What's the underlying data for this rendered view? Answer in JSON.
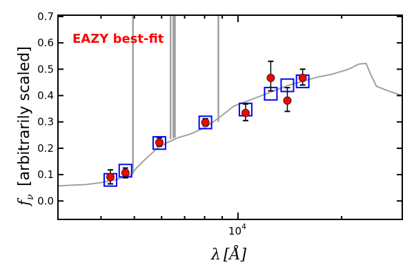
{
  "chart_data": {
    "type": "scatter",
    "annotation": "EAZY best-fit",
    "xlabel_symbol": "λ",
    "xlabel_unit": "[Å]",
    "ylabel_symbol": "f",
    "ylabel_subscript": "ν",
    "ylabel_text": "[arbitrarily scaled]",
    "xscale": "log",
    "xlim": [
      3000,
      30000
    ],
    "ylim": [
      -0.07,
      0.705
    ],
    "yticks": [
      0.0,
      0.1,
      0.2,
      0.3,
      0.4,
      0.5,
      0.6,
      0.7
    ],
    "ytick_labels": [
      "0.0",
      "0.1",
      "0.2",
      "0.3",
      "0.4",
      "0.5",
      "0.6",
      "0.7"
    ],
    "xtick_major": [
      10000
    ],
    "xtick_major_base": "10",
    "xtick_major_exp": "4",
    "xtick_minor": [
      4000,
      5000,
      6000,
      7000,
      8000,
      9000,
      20000
    ],
    "colors": {
      "sed": "#a0a0a0",
      "obs": "#ff0000",
      "model": "#0000ff",
      "annotation": "#ff0000"
    },
    "observed": [
      {
        "x": 4260,
        "y": 0.091,
        "lo": 0.065,
        "hi": 0.118
      },
      {
        "x": 4710,
        "y": 0.107,
        "lo": 0.088,
        "hi": 0.125
      },
      {
        "x": 5910,
        "y": 0.222,
        "lo": 0.208,
        "hi": 0.24
      },
      {
        "x": 8040,
        "y": 0.298,
        "lo": 0.285,
        "hi": 0.312
      },
      {
        "x": 10520,
        "y": 0.334,
        "lo": 0.305,
        "hi": 0.368
      },
      {
        "x": 12450,
        "y": 0.467,
        "lo": 0.418,
        "hi": 0.53
      },
      {
        "x": 13910,
        "y": 0.381,
        "lo": 0.34,
        "hi": 0.43
      },
      {
        "x": 15410,
        "y": 0.467,
        "lo": 0.44,
        "hi": 0.5
      }
    ],
    "model": [
      {
        "x": 4260,
        "y": 0.08
      },
      {
        "x": 4710,
        "y": 0.115
      },
      {
        "x": 5910,
        "y": 0.22
      },
      {
        "x": 8040,
        "y": 0.298
      },
      {
        "x": 10520,
        "y": 0.347
      },
      {
        "x": 12450,
        "y": 0.407
      },
      {
        "x": 13910,
        "y": 0.439
      },
      {
        "x": 15410,
        "y": 0.454
      }
    ],
    "sed": [
      [
        3000,
        0.057
      ],
      [
        3300,
        0.06
      ],
      [
        3600,
        0.062
      ],
      [
        4018,
        0.07
      ],
      [
        4400,
        0.08
      ],
      [
        4910,
        0.1
      ],
      [
        5070,
        0.125
      ],
      [
        5300,
        0.15
      ],
      [
        5500,
        0.17
      ],
      [
        5830,
        0.2
      ],
      [
        6200,
        0.22
      ],
      [
        6700,
        0.24
      ],
      [
        7300,
        0.255
      ],
      [
        8070,
        0.28
      ],
      [
        8900,
        0.32
      ],
      [
        9720,
        0.36
      ],
      [
        10700,
        0.38
      ],
      [
        11720,
        0.4
      ],
      [
        12800,
        0.42
      ],
      [
        14100,
        0.44
      ],
      [
        15500,
        0.455
      ],
      [
        16990,
        0.47
      ],
      [
        18650,
        0.48
      ],
      [
        20950,
        0.5
      ],
      [
        22480,
        0.52
      ],
      [
        23550,
        0.522
      ],
      [
        24300,
        0.48
      ],
      [
        25250,
        0.435
      ],
      [
        27040,
        0.42
      ],
      [
        30000,
        0.4
      ]
    ],
    "emission_lines": [
      {
        "x": 4955,
        "base": 0.105
      },
      {
        "x": 6370,
        "base": 0.235
      },
      {
        "x": 6490,
        "base": 0.238
      },
      {
        "x": 6560,
        "base": 0.24
      },
      {
        "x": 8770,
        "base": 0.3
      }
    ]
  }
}
